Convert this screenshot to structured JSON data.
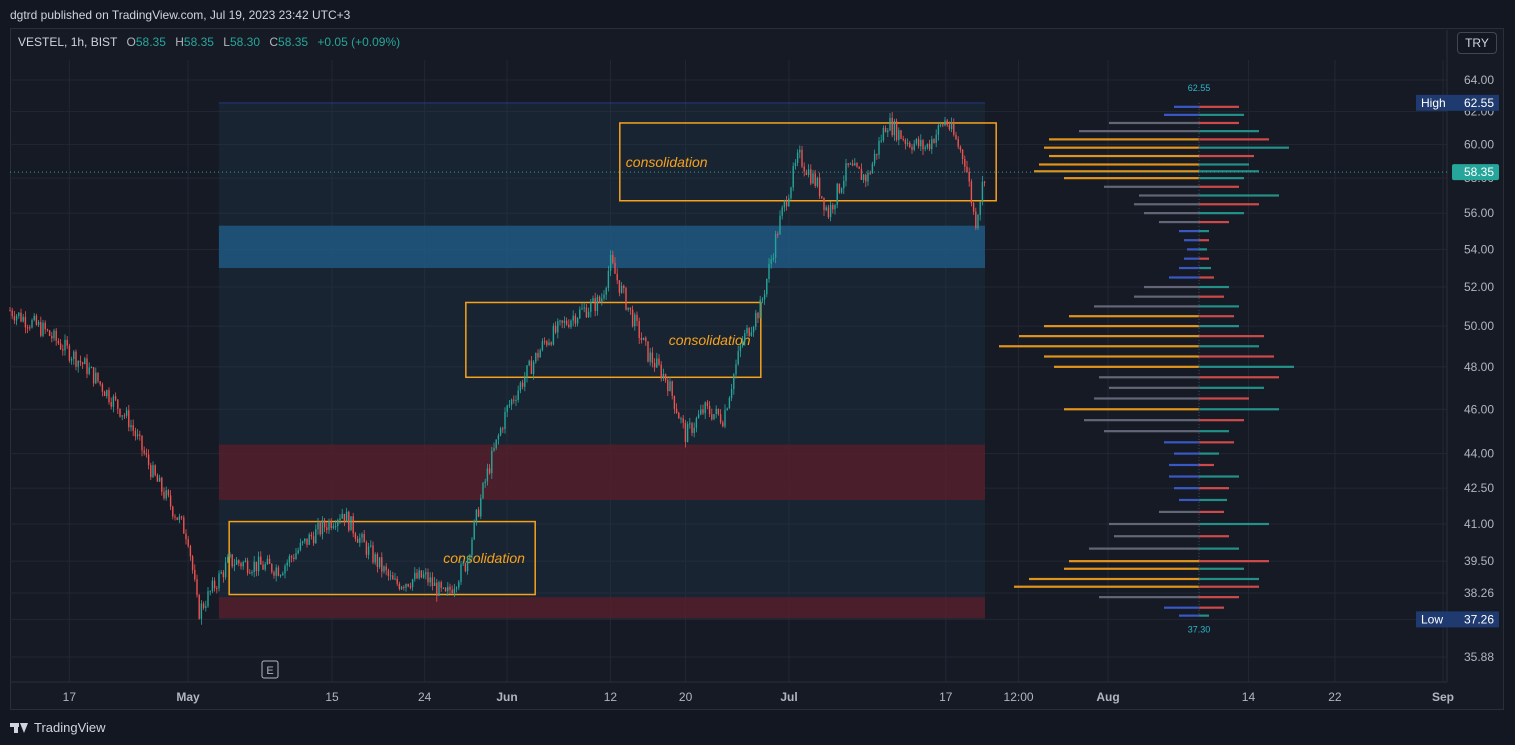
{
  "header": {
    "published": "dgtrd published on TradingView.com, Jul 19, 2023 23:42 UTC+3"
  },
  "legend": {
    "symbol": "VESTEL, 1h, BIST",
    "o_label": "O",
    "o": "58.35",
    "h_label": "H",
    "h": "58.35",
    "l_label": "L",
    "l": "58.30",
    "c_label": "C",
    "c": "58.35",
    "change": "+0.05 (+0.09%)"
  },
  "currency_button": "TRY",
  "footer": {
    "brand": "TradingView"
  },
  "earnings_marker": "E",
  "colors": {
    "up": "#26a69a",
    "down": "#ef5350",
    "box": "#f7a21b",
    "background": "#161a25",
    "last_price": "#26a69a",
    "high_low_label": "#1e3a6e",
    "profile_up": "#26a69a",
    "profile_down": "#ef5350",
    "profile_neutral": "#6b6f80",
    "profile_poc": "#f7a21b"
  },
  "chart_data": {
    "type": "candlestick",
    "y_axis": {
      "ticks": [
        "64.00",
        "62.00",
        "60.00",
        "58.00",
        "56.00",
        "54.00",
        "52.00",
        "50.00",
        "48.00",
        "46.00",
        "44.00",
        "42.50",
        "41.00",
        "39.50",
        "38.26",
        "37.26",
        "35.88"
      ],
      "range": [
        35.2,
        65.0
      ]
    },
    "x_axis": {
      "ticks": [
        "17",
        "May",
        "15",
        "24",
        "Jun",
        "12",
        "20",
        "Jul",
        "17",
        "12:00",
        "Aug",
        "14",
        "22",
        "Sep"
      ],
      "bold": [
        "May",
        "Jun",
        "Jul",
        "Aug",
        "Sep"
      ]
    },
    "last_price": {
      "label": "58.35",
      "value": 58.35
    },
    "high": {
      "label": "High",
      "value": "62.55"
    },
    "low": {
      "label": "Low",
      "value": "37.26"
    },
    "profile_range_labels": {
      "top": "62.55",
      "bottom": "37.30"
    },
    "zones": [
      {
        "kind": "supply",
        "from": 53.0,
        "to": 55.3,
        "color": "#1f5f8b"
      },
      {
        "kind": "demand",
        "from": 42.0,
        "to": 44.4,
        "color": "#5b1e2a"
      },
      {
        "kind": "demand",
        "from": 37.3,
        "to": 38.1,
        "color": "#5b1e2a"
      }
    ],
    "boxes": [
      {
        "label": "consolidation",
        "from_date": "2023-05-05",
        "to_date": "2023-06-04",
        "low": 38.2,
        "high": 41.1
      },
      {
        "label": "consolidation",
        "from_date": "2023-05-28",
        "to_date": "2023-06-28",
        "low": 47.5,
        "high": 51.2
      },
      {
        "label": "consolidation",
        "from_date": "2023-06-13",
        "to_date": "2023-07-22",
        "low": 56.7,
        "high": 61.3
      }
    ],
    "price_path": [
      {
        "date": "2023-04-10",
        "price": 50.8
      },
      {
        "date": "2023-04-14",
        "price": 49.8
      },
      {
        "date": "2023-04-19",
        "price": 48.0
      },
      {
        "date": "2023-04-24",
        "price": 45.5
      },
      {
        "date": "2023-04-27",
        "price": 43.0
      },
      {
        "date": "2023-05-01",
        "price": 40.5
      },
      {
        "date": "2023-05-02",
        "price": 37.5
      },
      {
        "date": "2023-05-05",
        "price": 39.5
      },
      {
        "date": "2023-05-10",
        "price": 39.2
      },
      {
        "date": "2023-05-13",
        "price": 40.5
      },
      {
        "date": "2023-05-16",
        "price": 41.5
      },
      {
        "date": "2023-05-18",
        "price": 40.2
      },
      {
        "date": "2023-05-21",
        "price": 38.6
      },
      {
        "date": "2023-05-24",
        "price": 38.9
      },
      {
        "date": "2023-05-26",
        "price": 38.1
      },
      {
        "date": "2023-05-28",
        "price": 39.4
      },
      {
        "date": "2023-05-30",
        "price": 43.0
      },
      {
        "date": "2023-06-01",
        "price": 46.0
      },
      {
        "date": "2023-06-03",
        "price": 47.6
      },
      {
        "date": "2023-06-05",
        "price": 49.2
      },
      {
        "date": "2023-06-08",
        "price": 50.5
      },
      {
        "date": "2023-06-11",
        "price": 51.3
      },
      {
        "date": "2023-06-12",
        "price": 53.3
      },
      {
        "date": "2023-06-14",
        "price": 50.8
      },
      {
        "date": "2023-06-16",
        "price": 48.6
      },
      {
        "date": "2023-06-18",
        "price": 47.4
      },
      {
        "date": "2023-06-20",
        "price": 44.8
      },
      {
        "date": "2023-06-22",
        "price": 46.0
      },
      {
        "date": "2023-06-24",
        "price": 45.6
      },
      {
        "date": "2023-06-26",
        "price": 49.2
      },
      {
        "date": "2023-06-28",
        "price": 51.0
      },
      {
        "date": "2023-06-30",
        "price": 55.5
      },
      {
        "date": "2023-07-02",
        "price": 59.3
      },
      {
        "date": "2023-07-04",
        "price": 57.5
      },
      {
        "date": "2023-07-05",
        "price": 56.0
      },
      {
        "date": "2023-07-07",
        "price": 58.6
      },
      {
        "date": "2023-07-09",
        "price": 58.0
      },
      {
        "date": "2023-07-11",
        "price": 61.4
      },
      {
        "date": "2023-07-13",
        "price": 60.2
      },
      {
        "date": "2023-07-15",
        "price": 59.8
      },
      {
        "date": "2023-07-17",
        "price": 61.5
      },
      {
        "date": "2023-07-19",
        "price": 59.0
      },
      {
        "date": "2023-07-20",
        "price": 55.4
      },
      {
        "date": "2023-07-21",
        "price": 58.35
      }
    ],
    "volume_profile": {
      "note_visible": false,
      "poc_prices": [
        58.4,
        49.0,
        38.5
      ],
      "rows": [
        {
          "price": 62.3,
          "buy": 25,
          "sell": 40
        },
        {
          "price": 61.8,
          "buy": 35,
          "sell": 45
        },
        {
          "price": 61.3,
          "buy": 90,
          "sell": 40
        },
        {
          "price": 60.8,
          "buy": 120,
          "sell": 60
        },
        {
          "price": 60.3,
          "buy": 150,
          "sell": 70
        },
        {
          "price": 59.8,
          "buy": 155,
          "sell": 90
        },
        {
          "price": 59.3,
          "buy": 150,
          "sell": 55
        },
        {
          "price": 58.8,
          "buy": 160,
          "sell": 50
        },
        {
          "price": 58.4,
          "buy": 165,
          "sell": 60
        },
        {
          "price": 58.0,
          "buy": 135,
          "sell": 45
        },
        {
          "price": 57.5,
          "buy": 95,
          "sell": 40
        },
        {
          "price": 57.0,
          "buy": 60,
          "sell": 80
        },
        {
          "price": 56.5,
          "buy": 65,
          "sell": 60
        },
        {
          "price": 56.0,
          "buy": 55,
          "sell": 45
        },
        {
          "price": 55.5,
          "buy": 40,
          "sell": 30
        },
        {
          "price": 55.0,
          "buy": 20,
          "sell": 10
        },
        {
          "price": 54.5,
          "buy": 15,
          "sell": 10
        },
        {
          "price": 54.0,
          "buy": 12,
          "sell": 8
        },
        {
          "price": 53.5,
          "buy": 15,
          "sell": 10
        },
        {
          "price": 53.0,
          "buy": 20,
          "sell": 12
        },
        {
          "price": 52.5,
          "buy": 30,
          "sell": 15
        },
        {
          "price": 52.0,
          "buy": 55,
          "sell": 30
        },
        {
          "price": 51.5,
          "buy": 65,
          "sell": 25
        },
        {
          "price": 51.0,
          "buy": 105,
          "sell": 40
        },
        {
          "price": 50.5,
          "buy": 130,
          "sell": 35
        },
        {
          "price": 50.0,
          "buy": 155,
          "sell": 40
        },
        {
          "price": 49.5,
          "buy": 180,
          "sell": 65
        },
        {
          "price": 49.0,
          "buy": 200,
          "sell": 60
        },
        {
          "price": 48.5,
          "buy": 155,
          "sell": 75
        },
        {
          "price": 48.0,
          "buy": 145,
          "sell": 95
        },
        {
          "price": 47.5,
          "buy": 100,
          "sell": 80
        },
        {
          "price": 47.0,
          "buy": 90,
          "sell": 65
        },
        {
          "price": 46.5,
          "buy": 105,
          "sell": 50
        },
        {
          "price": 46.0,
          "buy": 135,
          "sell": 80
        },
        {
          "price": 45.5,
          "buy": 115,
          "sell": 45
        },
        {
          "price": 45.0,
          "buy": 95,
          "sell": 30
        },
        {
          "price": 44.5,
          "buy": 35,
          "sell": 35
        },
        {
          "price": 44.0,
          "buy": 25,
          "sell": 20
        },
        {
          "price": 43.5,
          "buy": 30,
          "sell": 15
        },
        {
          "price": 43.0,
          "buy": 30,
          "sell": 40
        },
        {
          "price": 42.5,
          "buy": 25,
          "sell": 30
        },
        {
          "price": 42.0,
          "buy": 20,
          "sell": 28
        },
        {
          "price": 41.5,
          "buy": 40,
          "sell": 25
        },
        {
          "price": 41.0,
          "buy": 90,
          "sell": 70
        },
        {
          "price": 40.5,
          "buy": 85,
          "sell": 30
        },
        {
          "price": 40.0,
          "buy": 110,
          "sell": 40
        },
        {
          "price": 39.5,
          "buy": 130,
          "sell": 70
        },
        {
          "price": 39.2,
          "buy": 135,
          "sell": 45
        },
        {
          "price": 38.8,
          "buy": 170,
          "sell": 60
        },
        {
          "price": 38.5,
          "buy": 185,
          "sell": 60
        },
        {
          "price": 38.1,
          "buy": 100,
          "sell": 40
        },
        {
          "price": 37.7,
          "buy": 35,
          "sell": 25
        },
        {
          "price": 37.4,
          "buy": 20,
          "sell": 10
        }
      ]
    }
  }
}
